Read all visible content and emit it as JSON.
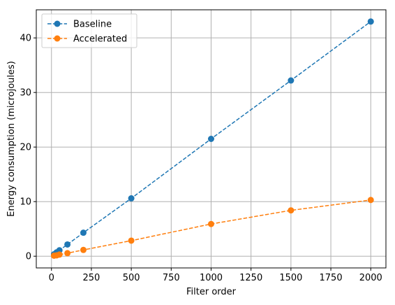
{
  "chart_data": {
    "type": "line",
    "title": "",
    "xlabel": "Filter order",
    "ylabel": "Energy consumption (microjoules)",
    "xlim": [
      -95,
      2095
    ],
    "ylim": [
      -2.15,
      45.15
    ],
    "xticks": [
      0,
      250,
      500,
      750,
      1000,
      1250,
      1500,
      1750,
      2000
    ],
    "yticks": [
      0,
      10,
      20,
      30,
      40
    ],
    "grid": true,
    "legend_position": "top-left",
    "series": [
      {
        "name": "Baseline",
        "color": "#1f77b4",
        "linestyle": "dashed",
        "marker": "circle",
        "x": [
          16,
          32,
          50,
          100,
          200,
          500,
          1000,
          1500,
          2000
        ],
        "y": [
          0.35,
          0.7,
          1.08,
          2.15,
          4.3,
          10.6,
          21.5,
          32.2,
          43.0
        ]
      },
      {
        "name": "Accelerated",
        "color": "#ff7f0e",
        "linestyle": "dashed",
        "marker": "circle",
        "x": [
          16,
          32,
          50,
          100,
          200,
          500,
          1000,
          1500,
          2000
        ],
        "y": [
          0.1,
          0.15,
          0.3,
          0.55,
          1.15,
          2.85,
          5.9,
          8.4,
          10.3
        ]
      }
    ]
  }
}
